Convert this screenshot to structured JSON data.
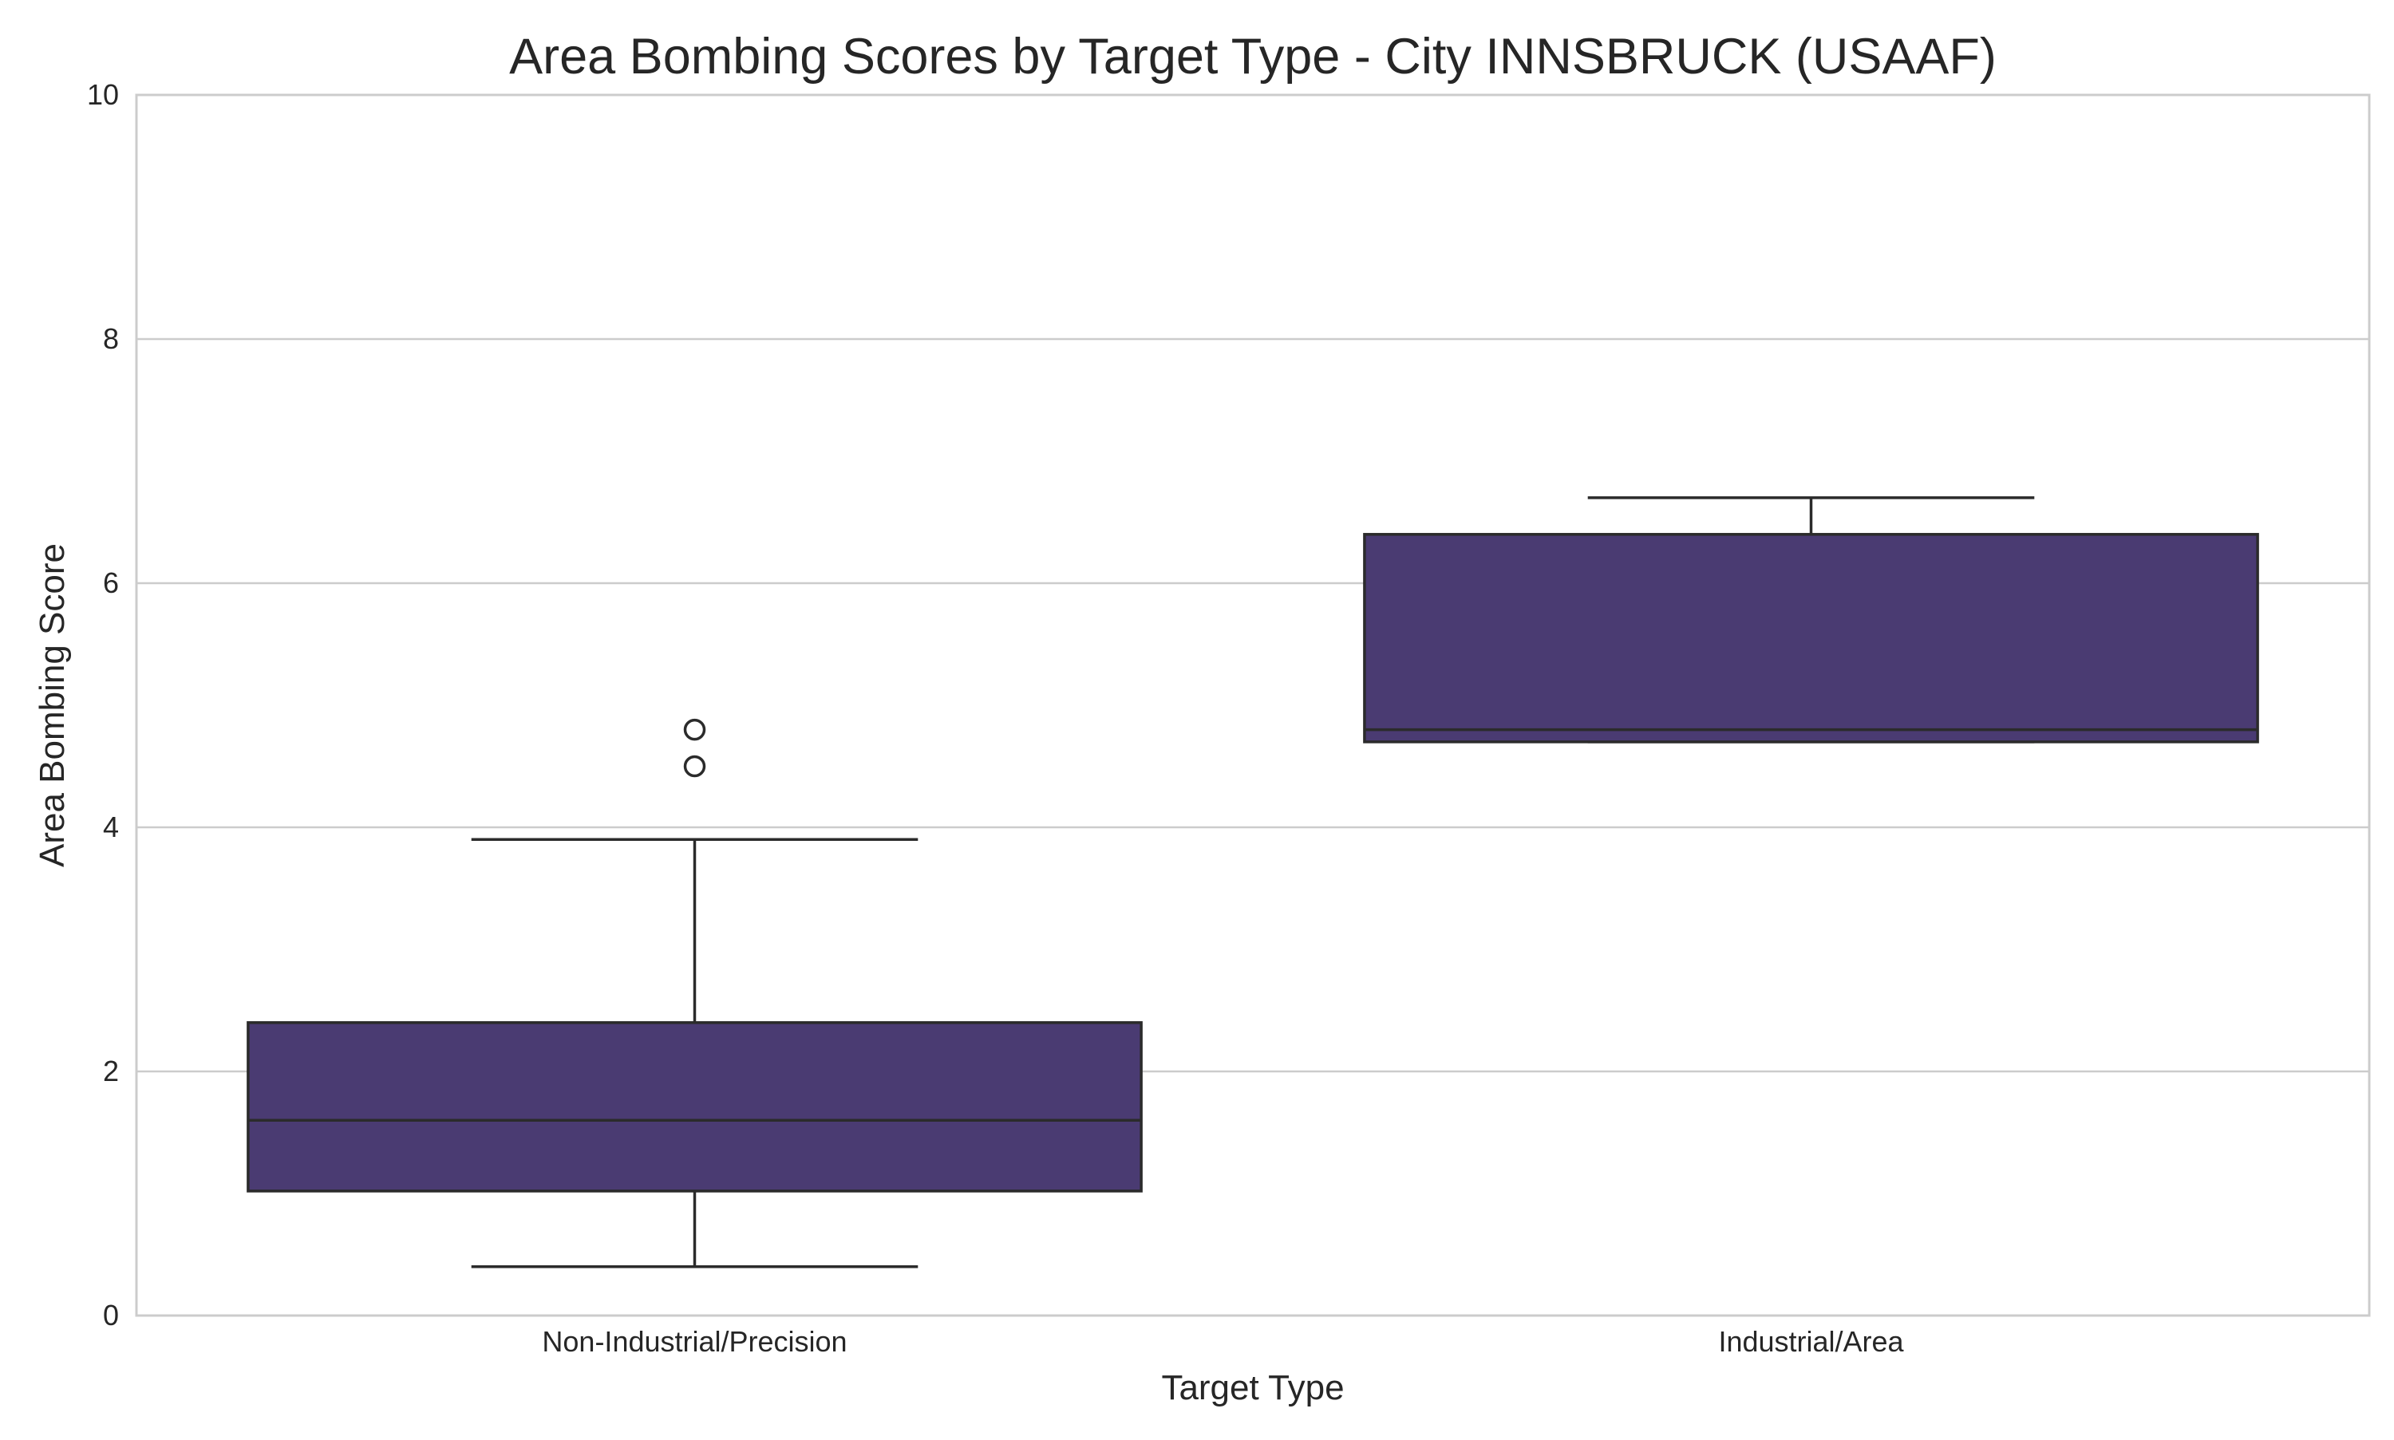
{
  "chart_data": {
    "type": "box",
    "title": "Area Bombing Scores by Target Type - City INNSBRUCK (USAAF)",
    "xlabel": "Target Type",
    "ylabel": "Area Bombing Score",
    "ylim": [
      0,
      10
    ],
    "yticks": [
      0,
      2,
      4,
      6,
      8,
      10
    ],
    "ytick_labels": [
      "0",
      "2",
      "4",
      "6",
      "8",
      "10"
    ],
    "grid": "horizontal",
    "box_color": "#4a3b72",
    "line_color": "#2b2b2b",
    "categories": [
      "Non-Industrial/Precision",
      "Industrial/Area"
    ],
    "boxes": [
      {
        "category": "Non-Industrial/Precision",
        "whisker_low": 0.4,
        "q1": 1.02,
        "median": 1.6,
        "q3": 2.4,
        "whisker_high": 3.9,
        "outliers": [
          4.5,
          4.8
        ]
      },
      {
        "category": "Industrial/Area",
        "whisker_low": 4.7,
        "q1": 4.7,
        "median": 4.8,
        "q3": 6.4,
        "whisker_high": 6.7,
        "outliers": []
      }
    ]
  }
}
